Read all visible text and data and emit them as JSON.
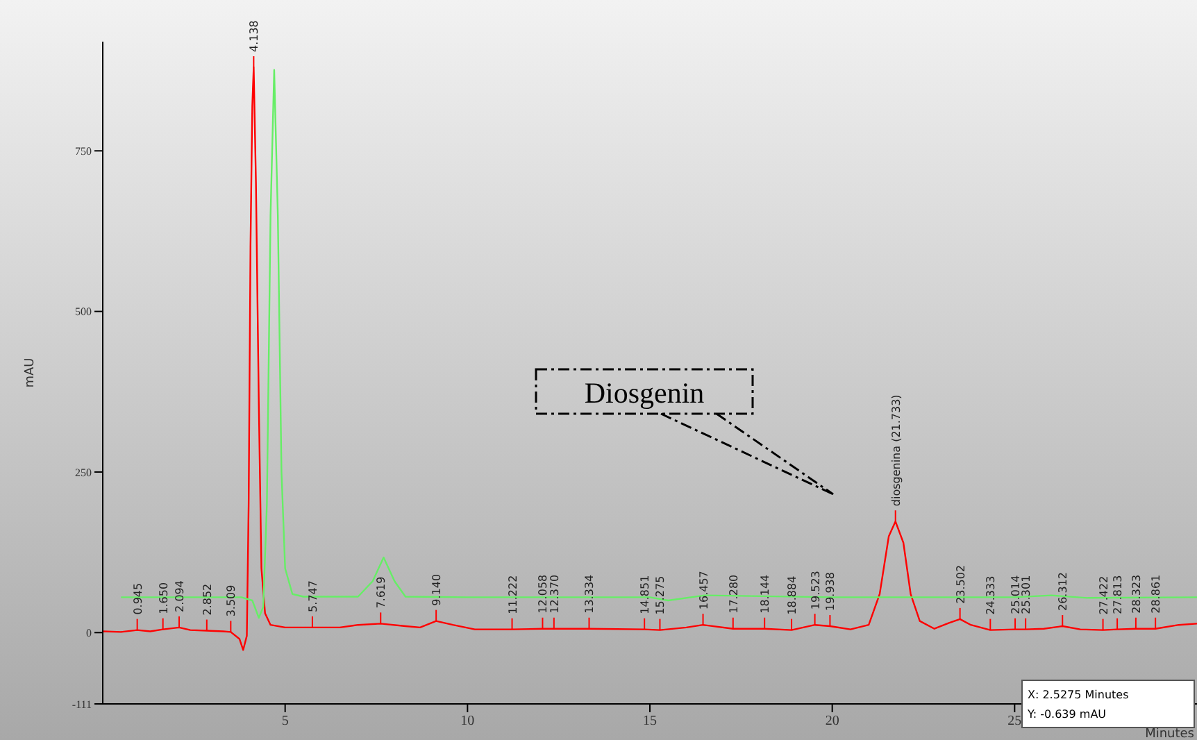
{
  "chart_data": {
    "type": "line",
    "xlabel": "Minutes",
    "ylabel": "mAU",
    "xlim": [
      0,
      30
    ],
    "xticks": [
      5,
      10,
      15,
      20,
      25
    ],
    "ylim": [
      -111,
      920
    ],
    "yticks": [
      -111,
      0,
      250,
      500,
      750
    ],
    "grid": false,
    "legend": false,
    "marker": "none",
    "line_style": "solid",
    "series": [
      {
        "color": "#ff0000",
        "x": [
          0,
          0.5,
          0.945,
          1.3,
          1.65,
          2.094,
          2.4,
          2.852,
          3.3,
          3.509,
          3.75,
          3.85,
          3.95,
          4.0,
          4.05,
          4.1,
          4.138,
          4.2,
          4.28,
          4.35,
          4.45,
          4.6,
          5.0,
          5.747,
          6.5,
          7.0,
          7.619,
          8.3,
          8.7,
          9.14,
          9.6,
          10.2,
          11.222,
          12.058,
          12.37,
          13.334,
          14.851,
          15.275,
          16.0,
          16.457,
          17.28,
          18.144,
          18.884,
          19.523,
          19.938,
          20.5,
          21.0,
          21.3,
          21.55,
          21.733,
          21.95,
          22.15,
          22.4,
          22.8,
          23.2,
          23.502,
          23.8,
          24.333,
          25.014,
          25.301,
          25.8,
          26.312,
          26.8,
          27.422,
          27.813,
          28.323,
          28.861,
          29.5,
          30
        ],
        "values": [
          2,
          1,
          4,
          2,
          5,
          8,
          4,
          3,
          2,
          1,
          -10,
          -27,
          -5,
          200,
          600,
          820,
          880,
          700,
          350,
          100,
          30,
          12,
          8,
          8,
          8,
          12,
          14,
          10,
          8,
          18,
          12,
          5,
          5,
          6,
          6,
          6,
          5,
          4,
          8,
          12,
          6,
          6,
          4,
          12,
          10,
          5,
          12,
          60,
          150,
          173,
          140,
          60,
          18,
          6,
          15,
          21,
          12,
          4,
          5,
          5,
          6,
          10,
          5,
          4,
          5,
          6,
          6,
          12,
          14
        ]
      },
      {
        "color": "#66ee66",
        "x": [
          0.5,
          1,
          2,
          3,
          3.8,
          4.1,
          4.28,
          4.4,
          4.5,
          4.6,
          4.7,
          4.8,
          4.9,
          5.0,
          5.2,
          5.5,
          7.0,
          7.4,
          7.7,
          8.0,
          8.3,
          10,
          15,
          15.5,
          16.5,
          20,
          25,
          26,
          27,
          30
        ],
        "values": [
          55,
          55,
          55,
          55,
          55,
          50,
          23,
          40,
          200,
          650,
          876,
          650,
          250,
          100,
          60,
          56,
          56,
          80,
          117,
          80,
          56,
          55,
          55,
          50,
          58,
          55,
          55,
          58,
          54,
          55
        ]
      }
    ],
    "annotations": [
      {
        "text": "0.945",
        "x": 0.945,
        "y": 4
      },
      {
        "text": "1.650",
        "x": 1.65,
        "y": 5
      },
      {
        "text": "2.094",
        "x": 2.094,
        "y": 8
      },
      {
        "text": "2.852",
        "x": 2.852,
        "y": 3
      },
      {
        "text": "3.509",
        "x": 3.509,
        "y": 1
      },
      {
        "text": "4.138",
        "x": 4.138,
        "y": 880
      },
      {
        "text": "5.747",
        "x": 5.747,
        "y": 8
      },
      {
        "text": "7.619",
        "x": 7.619,
        "y": 14
      },
      {
        "text": "9.140",
        "x": 9.14,
        "y": 18
      },
      {
        "text": "11.222",
        "x": 11.222,
        "y": 5
      },
      {
        "text": "12.058",
        "x": 12.058,
        "y": 6
      },
      {
        "text": "12.370",
        "x": 12.37,
        "y": 6
      },
      {
        "text": "13.334",
        "x": 13.334,
        "y": 6
      },
      {
        "text": "14.851",
        "x": 14.851,
        "y": 5
      },
      {
        "text": "15.275",
        "x": 15.275,
        "y": 4
      },
      {
        "text": "16.457",
        "x": 16.457,
        "y": 12
      },
      {
        "text": "17.280",
        "x": 17.28,
        "y": 6
      },
      {
        "text": "18.144",
        "x": 18.144,
        "y": 6
      },
      {
        "text": "18.884",
        "x": 18.884,
        "y": 4
      },
      {
        "text": "19.523",
        "x": 19.523,
        "y": 12
      },
      {
        "text": "19.938",
        "x": 19.938,
        "y": 10
      },
      {
        "text": "diosgenina (21.733)",
        "x": 21.733,
        "y": 173
      },
      {
        "text": "23.502",
        "x": 23.502,
        "y": 21
      },
      {
        "text": "24.333",
        "x": 24.333,
        "y": 4
      },
      {
        "text": "25.014",
        "x": 25.014,
        "y": 5
      },
      {
        "text": "25.301",
        "x": 25.301,
        "y": 5
      },
      {
        "text": "26.312",
        "x": 26.312,
        "y": 10
      },
      {
        "text": "27.422",
        "x": 27.422,
        "y": 4
      },
      {
        "text": "27.813",
        "x": 27.813,
        "y": 5
      },
      {
        "text": "28.323",
        "x": 28.323,
        "y": 6
      },
      {
        "text": "28.861",
        "x": 28.861,
        "y": 6
      },
      "Diosgenin",
      "X: 2.5275 Minutes",
      "Y: -0.639 mAU"
    ]
  }
}
